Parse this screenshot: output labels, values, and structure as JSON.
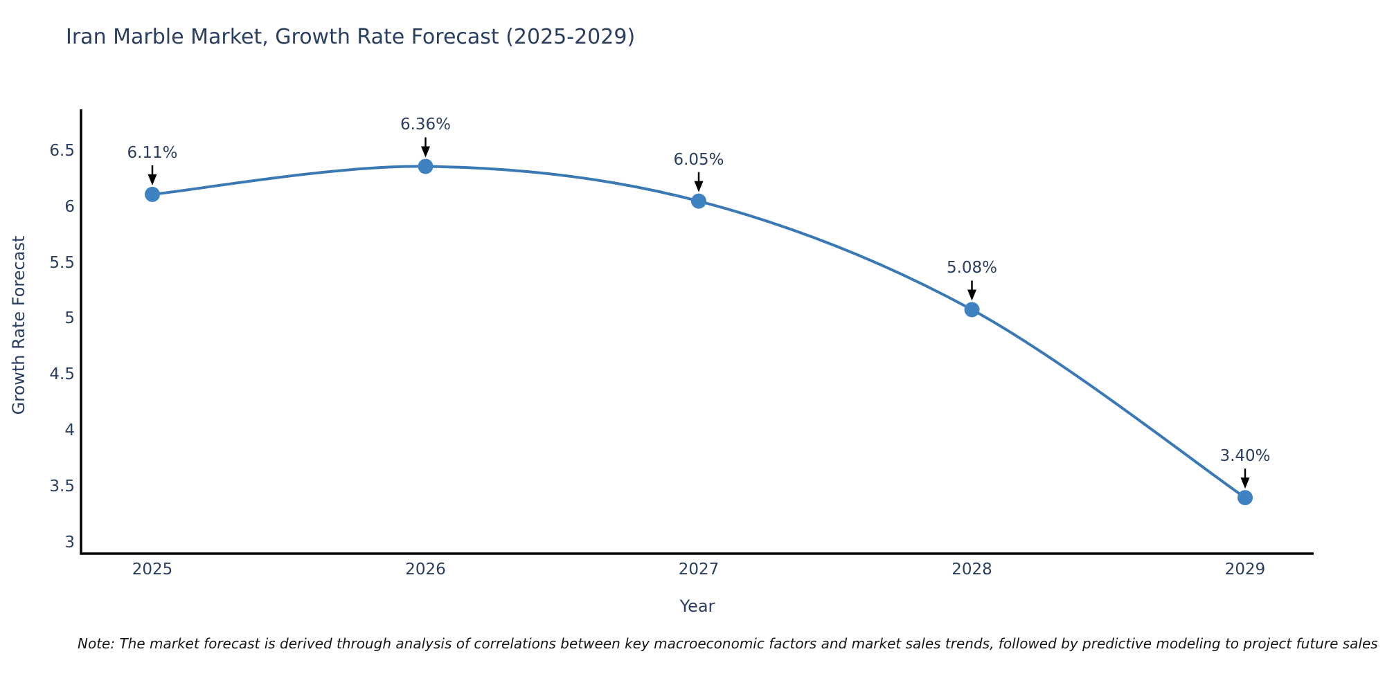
{
  "figure": {
    "note": "Note: The market forecast is derived through analysis of correlations between key macroeconomic factors and market sales trends, followed by predictive modeling to project future sales"
  },
  "chart_data": {
    "type": "line",
    "title": "Iran Marble Market, Growth Rate Forecast (2025-2029)",
    "xlabel": "Year",
    "ylabel": "Growth Rate Forecast",
    "categories": [
      "2025",
      "2026",
      "2027",
      "2028",
      "2029"
    ],
    "values": [
      6.11,
      6.36,
      6.05,
      5.08,
      3.4
    ],
    "point_labels": [
      "6.11%",
      "6.36%",
      "6.05%",
      "5.08%",
      "3.40%"
    ],
    "yticks": [
      "3",
      "3.5",
      "4",
      "4.5",
      "5",
      "5.5",
      "6",
      "6.5"
    ],
    "ytick_values": [
      3,
      3.5,
      4,
      4.5,
      5,
      5.5,
      6,
      6.5
    ],
    "ylim": [
      2.9,
      6.87
    ],
    "line_shape": "spline",
    "grid": false,
    "legend": false,
    "annotation_style": "downward-arrow-above-point",
    "colors": {
      "line": "#3a79b3",
      "marker": "#3f82c1",
      "axis": "#000000",
      "text": "#2a3f5f",
      "arrow": "#000000",
      "note_text": "#161616",
      "background": "#ffffff"
    }
  }
}
